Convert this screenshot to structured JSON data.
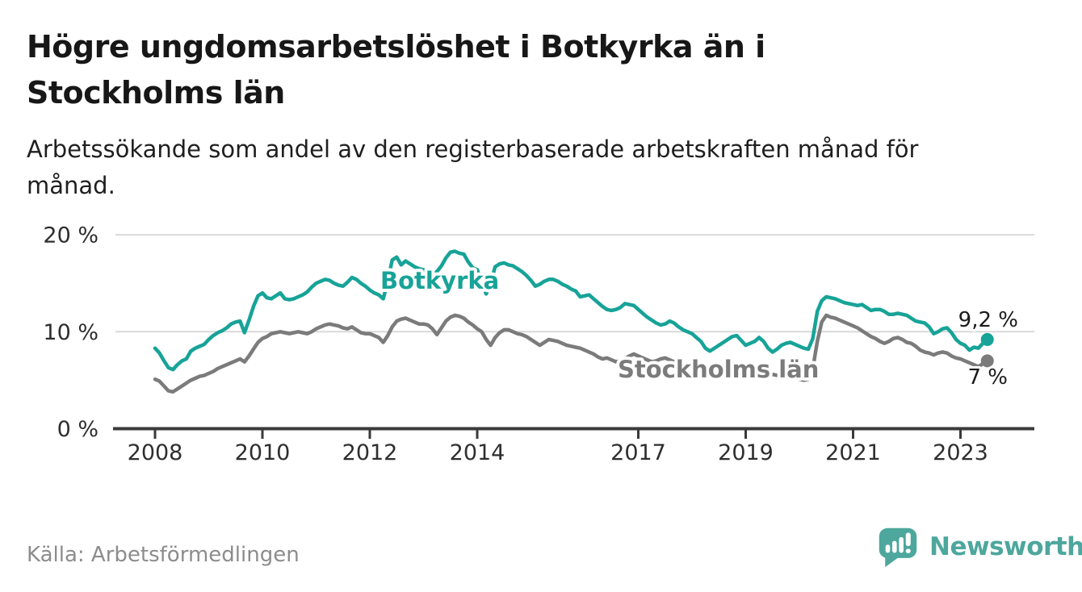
{
  "header": {
    "title": "Högre ungdomsarbetslöshet i Botkyrka än i Stockholms län",
    "title_lines": [
      "Högre ungdomsarbetslöshet i Botkyrka än i",
      "Stockholms län"
    ],
    "subtitle": "Arbetssökande som andel av den registerbaserade arbetskraften månad för månad.",
    "subtitle_lines": [
      "Arbetssökande som andel av den registerbaserade arbetskraften månad för",
      "månad."
    ]
  },
  "footer": {
    "source": "Källa: Arbetsförmedlingen",
    "logo_text": "Newsworthy"
  },
  "colors": {
    "botkyrka_teal": "#17a398",
    "stockholm_gray": "#7b7b7b",
    "logo_teal": "#4da79d",
    "gridline": "#d9d9d9",
    "axis": "#3a3a3a",
    "text_dark": "#1a1a1a"
  },
  "chart_data": {
    "type": "line",
    "title": "Högre ungdomsarbetslöshet i Botkyrka än i Stockholms län",
    "subtitle": "Arbetssökande som andel av den registerbaserade arbetskraften månad för månad.",
    "source": "Källa: Arbetsförmedlingen",
    "unit": "%",
    "x_start": "2008-01",
    "x_end": "2023-07",
    "x_interval": "monthly",
    "x_ticks": [
      2008,
      2010,
      2012,
      2014,
      2017,
      2019,
      2021,
      2023
    ],
    "y_axis": {
      "ylim": [
        0,
        21
      ],
      "tick_values": [
        0,
        10,
        20
      ],
      "tick_labels": [
        "0 %",
        "10 %",
        "20 %"
      ],
      "gridline_values": [
        10,
        20
      ],
      "grid": true
    },
    "legend": "inline series labels",
    "series": [
      {
        "name": "Botkyrka",
        "color": "#17a398",
        "end_label": "9,2 %",
        "last_value": 9.2,
        "start_year": 2008,
        "values": [
          8.3,
          7.8,
          7.0,
          6.3,
          6.1,
          6.6,
          7.0,
          7.2,
          8.0,
          8.3,
          8.5,
          8.7,
          9.2,
          9.6,
          9.9,
          10.1,
          10.4,
          10.8,
          11.0,
          11.1,
          9.9,
          11.2,
          12.6,
          13.7,
          14.0,
          13.5,
          13.4,
          13.7,
          14.0,
          13.4,
          13.3,
          13.4,
          13.6,
          13.8,
          14.1,
          14.6,
          15.0,
          15.2,
          15.4,
          15.3,
          15.0,
          14.8,
          14.7,
          15.1,
          15.6,
          15.4,
          15.0,
          14.7,
          14.3,
          14.0,
          13.8,
          13.4,
          15.2,
          17.4,
          17.7,
          16.9,
          17.3,
          17.0,
          16.7,
          16.5,
          16.4,
          16.2,
          16.0,
          16.2,
          16.8,
          17.6,
          18.2,
          18.3,
          18.1,
          18.0,
          17.2,
          16.6,
          16.4,
          15.1,
          13.9,
          15.0,
          16.7,
          17.0,
          17.1,
          16.9,
          16.8,
          16.5,
          16.2,
          15.8,
          15.3,
          14.7,
          14.9,
          15.2,
          15.4,
          15.4,
          15.2,
          14.9,
          14.7,
          14.4,
          14.2,
          13.6,
          13.7,
          13.8,
          13.4,
          13.0,
          12.6,
          12.3,
          12.2,
          12.3,
          12.5,
          12.9,
          12.8,
          12.7,
          12.3,
          11.9,
          11.5,
          11.2,
          10.9,
          10.7,
          10.8,
          11.1,
          10.9,
          10.5,
          10.2,
          10.0,
          9.8,
          9.4,
          9.0,
          8.3,
          8.0,
          8.3,
          8.6,
          8.9,
          9.2,
          9.5,
          9.6,
          9.1,
          8.6,
          8.8,
          9.0,
          9.4,
          9.0,
          8.3,
          7.9,
          8.2,
          8.6,
          8.8,
          8.9,
          8.7,
          8.5,
          8.3,
          8.2,
          9.3,
          12.1,
          13.2,
          13.6,
          13.5,
          13.4,
          13.2,
          13.0,
          12.9,
          12.8,
          12.7,
          12.8,
          12.5,
          12.2,
          12.3,
          12.3,
          12.1,
          11.8,
          11.8,
          11.9,
          11.8,
          11.7,
          11.4,
          11.1,
          11.0,
          10.9,
          10.5,
          9.8,
          10.0,
          10.3,
          10.4,
          9.9,
          9.2,
          8.8,
          8.6,
          8.1,
          8.4,
          8.3,
          8.8,
          9.2
        ]
      },
      {
        "name": "Stockholms län",
        "color": "#7b7b7b",
        "end_label": "7 %",
        "last_value": 7.0,
        "start_year": 2008,
        "values": [
          5.1,
          4.9,
          4.4,
          3.9,
          3.8,
          4.1,
          4.4,
          4.7,
          5.0,
          5.2,
          5.4,
          5.5,
          5.7,
          5.9,
          6.2,
          6.4,
          6.6,
          6.8,
          7.0,
          7.2,
          6.9,
          7.5,
          8.2,
          8.9,
          9.3,
          9.5,
          9.8,
          9.9,
          10.0,
          9.9,
          9.8,
          9.9,
          10.0,
          9.9,
          9.8,
          10.0,
          10.3,
          10.5,
          10.7,
          10.8,
          10.7,
          10.6,
          10.4,
          10.3,
          10.5,
          10.2,
          9.9,
          9.8,
          9.8,
          9.6,
          9.4,
          8.9,
          9.6,
          10.5,
          11.1,
          11.3,
          11.4,
          11.2,
          11.0,
          10.8,
          10.8,
          10.7,
          10.3,
          9.7,
          10.4,
          11.1,
          11.5,
          11.7,
          11.6,
          11.4,
          11.0,
          10.7,
          10.3,
          10.0,
          9.2,
          8.6,
          9.4,
          9.9,
          10.2,
          10.2,
          10.0,
          9.8,
          9.7,
          9.5,
          9.2,
          8.9,
          8.6,
          8.9,
          9.2,
          9.1,
          9.0,
          8.8,
          8.6,
          8.5,
          8.4,
          8.3,
          8.1,
          7.9,
          7.7,
          7.4,
          7.2,
          7.3,
          7.1,
          6.9,
          7.0,
          7.2,
          7.5,
          7.7,
          7.5,
          7.3,
          7.1,
          6.9,
          7.0,
          7.2,
          7.3,
          7.1,
          6.9,
          6.8,
          6.7,
          6.6,
          6.5,
          6.5,
          6.4,
          6.3,
          6.3,
          6.2,
          6.2,
          6.1,
          6.1,
          6.0,
          6.0,
          5.9,
          5.9,
          5.8,
          5.8,
          5.7,
          5.7,
          5.6,
          5.6,
          5.5,
          5.5,
          5.4,
          5.3,
          5.2,
          5.1,
          5.0,
          5.1,
          6.2,
          9.0,
          11.0,
          11.7,
          11.5,
          11.4,
          11.2,
          11.0,
          10.8,
          10.6,
          10.4,
          10.1,
          9.8,
          9.5,
          9.3,
          9.0,
          8.8,
          9.0,
          9.3,
          9.4,
          9.2,
          8.9,
          8.8,
          8.5,
          8.1,
          7.9,
          7.8,
          7.6,
          7.8,
          7.9,
          7.8,
          7.5,
          7.3,
          7.2,
          7.0,
          6.8,
          6.6,
          6.4,
          6.7,
          7.0
        ]
      }
    ]
  }
}
